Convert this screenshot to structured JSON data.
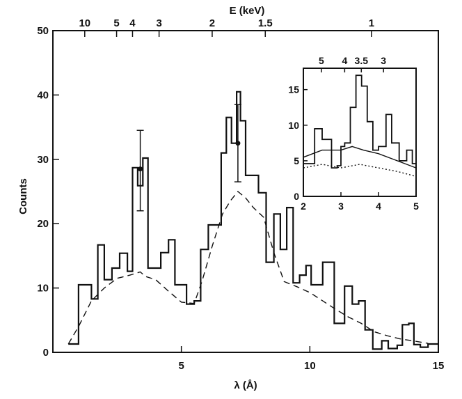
{
  "chart_data": [
    {
      "type": "line",
      "xlabel": "λ (Å)",
      "ylabel": "Counts",
      "top_axis_label": "E (keV)",
      "xlim": [
        0,
        15
      ],
      "ylim": [
        0,
        50
      ],
      "x_ticks": [
        5,
        10,
        15
      ],
      "y_ticks": [
        0,
        10,
        20,
        30,
        40,
        50
      ],
      "top_ticks": [
        10,
        5,
        4,
        3,
        2,
        1.5,
        1
      ],
      "grid": false,
      "series": [
        {
          "style": "histogram",
          "bins": [
            [
              0.6,
              1.0,
              1.3
            ],
            [
              1.0,
              1.5,
              10.5
            ],
            [
              1.5,
              1.75,
              8.3
            ],
            [
              1.75,
              2.0,
              16.7
            ],
            [
              2.0,
              2.3,
              11.3
            ],
            [
              2.3,
              2.6,
              13.1
            ],
            [
              2.6,
              2.9,
              15.4
            ],
            [
              2.9,
              3.1,
              12.6
            ],
            [
              3.1,
              3.3,
              28.7
            ],
            [
              3.3,
              3.5,
              25.9
            ],
            [
              3.5,
              3.7,
              30.2
            ],
            [
              3.7,
              4.2,
              13.1
            ],
            [
              4.2,
              4.5,
              15.5
            ],
            [
              4.5,
              4.75,
              17.5
            ],
            [
              4.75,
              5.2,
              10.5
            ],
            [
              5.2,
              5.5,
              7.5
            ],
            [
              5.5,
              5.75,
              8.0
            ],
            [
              5.75,
              6.05,
              16.0
            ],
            [
              6.05,
              6.55,
              19.8
            ],
            [
              6.55,
              6.75,
              31.0
            ],
            [
              6.75,
              6.95,
              36.5
            ],
            [
              6.95,
              7.15,
              32.5
            ],
            [
              7.15,
              7.3,
              40.5
            ],
            [
              7.3,
              7.5,
              36.0
            ],
            [
              7.5,
              8.0,
              27.5
            ],
            [
              8.0,
              8.3,
              24.8
            ],
            [
              8.3,
              8.6,
              14.0
            ],
            [
              8.6,
              8.85,
              21.5
            ],
            [
              8.85,
              9.1,
              16.0
            ],
            [
              9.1,
              9.35,
              22.5
            ],
            [
              9.35,
              9.6,
              10.8
            ],
            [
              9.6,
              9.85,
              12.0
            ],
            [
              9.85,
              10.05,
              13.5
            ],
            [
              10.05,
              10.5,
              10.5
            ],
            [
              10.5,
              10.95,
              14.0
            ],
            [
              10.95,
              11.35,
              4.5
            ],
            [
              11.35,
              11.65,
              10.3
            ],
            [
              11.65,
              11.9,
              7.5
            ],
            [
              11.9,
              12.15,
              8.0
            ],
            [
              12.15,
              12.45,
              3.5
            ],
            [
              12.45,
              12.8,
              0.5
            ],
            [
              12.8,
              13.05,
              1.8
            ],
            [
              13.05,
              13.4,
              0.6
            ],
            [
              13.4,
              13.6,
              1.1
            ],
            [
              13.6,
              13.85,
              4.3
            ],
            [
              13.85,
              14.05,
              4.5
            ],
            [
              14.05,
              14.3,
              1.2
            ],
            [
              14.3,
              14.6,
              0.8
            ],
            [
              14.6,
              15.0,
              1.3
            ]
          ]
        },
        {
          "style": "dashed-model",
          "points": [
            [
              0.6,
              1.3
            ],
            [
              1.0,
              4.0
            ],
            [
              1.5,
              8.0
            ],
            [
              2.0,
              10.0
            ],
            [
              2.5,
              11.5
            ],
            [
              3.0,
              12.0
            ],
            [
              3.4,
              12.5
            ],
            [
              3.6,
              11.8
            ],
            [
              4.0,
              11.3
            ],
            [
              4.5,
              9.5
            ],
            [
              5.0,
              7.8
            ],
            [
              5.5,
              7.6
            ],
            [
              5.8,
              11.0
            ],
            [
              6.2,
              16.5
            ],
            [
              6.6,
              21.5
            ],
            [
              6.9,
              23.5
            ],
            [
              7.2,
              25.0
            ],
            [
              7.5,
              24.0
            ],
            [
              7.8,
              22.5
            ],
            [
              8.2,
              21.0
            ],
            [
              8.6,
              15.5
            ],
            [
              9.0,
              11.0
            ],
            [
              9.5,
              10.2
            ],
            [
              10.0,
              9.3
            ],
            [
              10.5,
              8.0
            ],
            [
              11.0,
              6.7
            ],
            [
              11.5,
              5.5
            ],
            [
              12.0,
              4.5
            ],
            [
              12.5,
              3.2
            ],
            [
              13.0,
              2.6
            ],
            [
              13.5,
              2.1
            ],
            [
              14.0,
              1.8
            ],
            [
              14.6,
              1.4
            ]
          ]
        },
        {
          "style": "error-bars",
          "points": [
            {
              "x": 3.4,
              "y": 28.5,
              "lo": 22.0,
              "hi": 34.5
            },
            {
              "x": 7.2,
              "y": 32.5,
              "lo": 26.5,
              "hi": 38.5
            }
          ]
        }
      ]
    },
    {
      "type": "line",
      "role": "inset",
      "xlim": [
        2,
        5
      ],
      "ylim": [
        0,
        18
      ],
      "x_ticks": [
        2,
        3,
        4,
        5
      ],
      "y_ticks": [
        0,
        5,
        10,
        15
      ],
      "top_ticks": [
        "5",
        "4",
        "3.5",
        "3"
      ],
      "grid": false,
      "series": [
        {
          "style": "histogram",
          "bins": [
            [
              2.0,
              2.3,
              4.6
            ],
            [
              2.3,
              2.5,
              9.5
            ],
            [
              2.5,
              2.75,
              8.0
            ],
            [
              2.75,
              2.9,
              4.0
            ],
            [
              2.9,
              3.0,
              4.3
            ],
            [
              3.0,
              3.1,
              7.0
            ],
            [
              3.1,
              3.25,
              7.5
            ],
            [
              3.25,
              3.4,
              12.5
            ],
            [
              3.4,
              3.55,
              17.0
            ],
            [
              3.55,
              3.7,
              15.5
            ],
            [
              3.7,
              3.85,
              10.5
            ],
            [
              3.85,
              4.0,
              6.5
            ],
            [
              4.0,
              4.2,
              7.0
            ],
            [
              4.2,
              4.35,
              11.5
            ],
            [
              4.35,
              4.55,
              7.5
            ],
            [
              4.55,
              4.75,
              5.0
            ],
            [
              4.75,
              4.9,
              6.5
            ],
            [
              4.9,
              5.0,
              4.6
            ]
          ]
        },
        {
          "style": "solid-model",
          "points": [
            [
              2.0,
              5.5
            ],
            [
              2.5,
              6.5
            ],
            [
              3.0,
              6.5
            ],
            [
              3.3,
              7.0
            ],
            [
              3.6,
              6.5
            ],
            [
              4.0,
              6.0
            ],
            [
              4.5,
              5.0
            ],
            [
              5.0,
              4.0
            ]
          ]
        },
        {
          "style": "dotted-model",
          "points": [
            [
              2.0,
              4.0
            ],
            [
              2.5,
              4.5
            ],
            [
              3.0,
              4.0
            ],
            [
              3.5,
              4.5
            ],
            [
              4.0,
              4.0
            ],
            [
              4.5,
              3.5
            ],
            [
              5.0,
              2.8
            ]
          ]
        }
      ]
    }
  ]
}
